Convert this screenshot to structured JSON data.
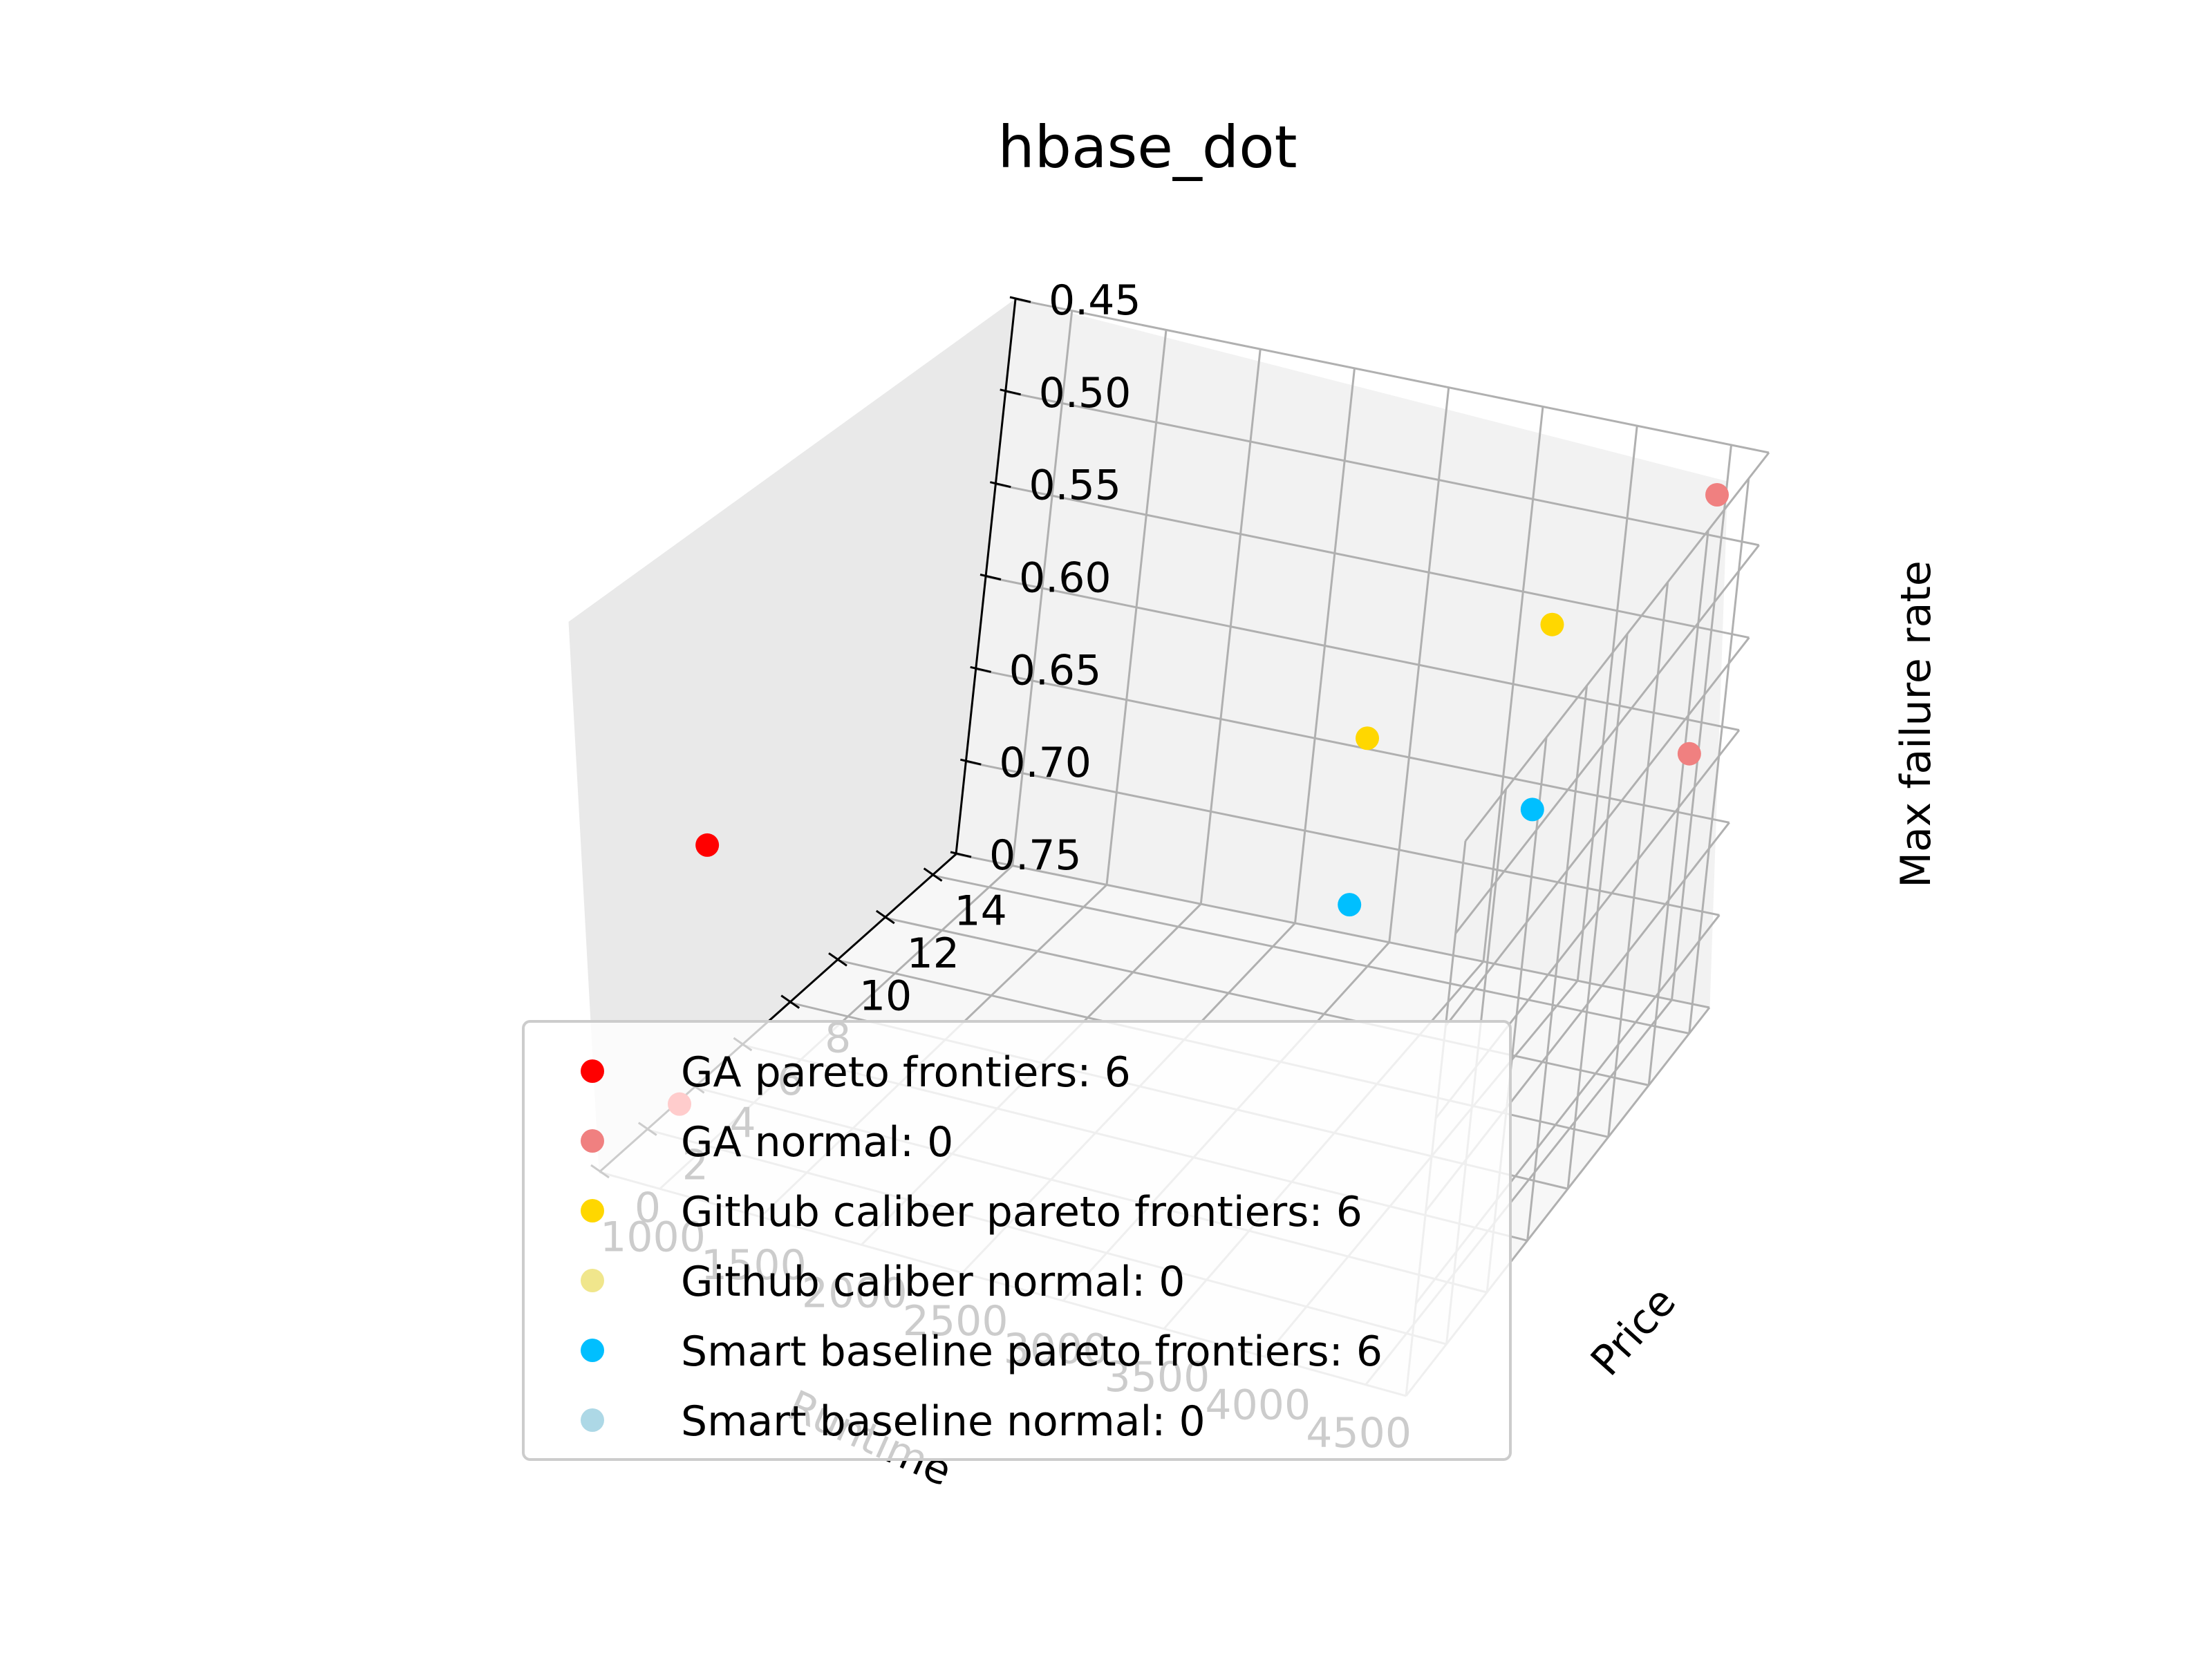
{
  "chart_data": {
    "type": "scatter",
    "projection": "3d",
    "title": "hbase_dot",
    "xlabel": "Runtime",
    "ylabel": "Price",
    "zlabel": "Max failure rate",
    "x_ticks": [
      "4500",
      "4000",
      "3500",
      "3000",
      "2500",
      "2000",
      "1500",
      "1000"
    ],
    "y_ticks": [
      "0",
      "2",
      "4",
      "6",
      "8",
      "10",
      "12",
      "14"
    ],
    "z_ticks": [
      "0.45",
      "0.50",
      "0.55",
      "0.60",
      "0.65",
      "0.70",
      "0.75"
    ],
    "xlim": [
      4700,
      700
    ],
    "ylim": [
      0,
      15
    ],
    "zlim": [
      0.75,
      0.45
    ],
    "grid": true,
    "legend_position": "lower-left",
    "series": [
      {
        "name": "GA pareto frontiers: 6",
        "color": "#ff0000",
        "points": [
          {
            "x": 1000,
            "y": 0.5,
            "z": 0.57
          },
          {
            "x": 1000,
            "y": 0.5,
            "z": 0.71
          }
        ]
      },
      {
        "name": "GA normal: 0",
        "color": "#f08080",
        "points": [
          {
            "x": 4500,
            "y": 14.5,
            "z": 0.47
          },
          {
            "x": 4500,
            "y": 14.5,
            "z": 0.61
          }
        ]
      },
      {
        "name": "Github caliber pareto frontiers: 6",
        "color": "#ffd700",
        "points": [
          {
            "x": 3500,
            "y": 7.5,
            "z": 0.53
          },
          {
            "x": 4000,
            "y": 11.5,
            "z": 0.51
          }
        ]
      },
      {
        "name": "Github caliber normal: 0",
        "color": "#f0e68c",
        "points": []
      },
      {
        "name": "Smart baseline pareto frontiers: 6",
        "color": "#00bfff",
        "points": [
          {
            "x": 3500,
            "y": 7.5,
            "z": 0.62
          },
          {
            "x": 4000,
            "y": 11.5,
            "z": 0.61
          }
        ]
      },
      {
        "name": "Smart baseline normal: 0",
        "color": "#add8e6",
        "points": []
      }
    ]
  }
}
